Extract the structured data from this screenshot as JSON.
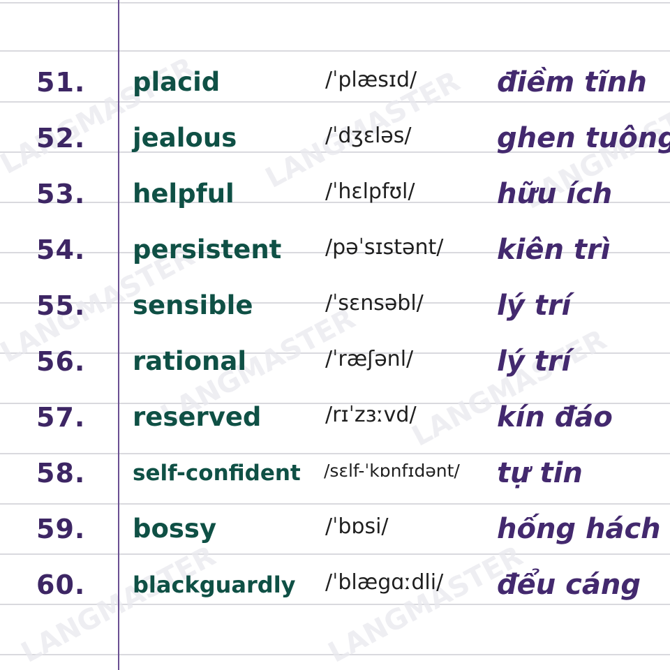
{
  "watermark_text": "LANGMASTER",
  "colors": {
    "number": "#3d2664",
    "word": "#0f5045",
    "ipa": "#1f1f1f",
    "meaning": "#43296e",
    "margin_line": "#6a4f92",
    "rule_line": "#d9d9de"
  },
  "entries": [
    {
      "number": "51.",
      "word": "placid",
      "ipa": "/ˈplæsɪd/",
      "meaning": "điềm tĩnh"
    },
    {
      "number": "52.",
      "word": "jealous",
      "ipa": "/ˈdʒɛləs/",
      "meaning": "ghen tuông"
    },
    {
      "number": "53.",
      "word": "helpful",
      "ipa": "/ˈhɛlpfʊl/",
      "meaning": "hữu ích"
    },
    {
      "number": "54.",
      "word": "persistent",
      "ipa": "/pəˈsɪstənt/",
      "meaning": "kiên trì"
    },
    {
      "number": "55.",
      "word": "sensible",
      "ipa": "/ˈsɛnsəbl/",
      "meaning": "lý trí"
    },
    {
      "number": "56.",
      "word": "rational",
      "ipa": "/ˈræʃənl/",
      "meaning": "lý trí"
    },
    {
      "number": "57.",
      "word": "reserved",
      "ipa": "/rɪˈzɜːvd/",
      "meaning": "kín đáo"
    },
    {
      "number": "58.",
      "word": "self-confident",
      "ipa": "/sɛlf-ˈkɒnfɪdənt/",
      "meaning": "tự tin"
    },
    {
      "number": "59.",
      "word": "bossy",
      "ipa": "/ˈbɒsi/",
      "meaning": "hống hách"
    },
    {
      "number": "60.",
      "word": "blackguardly",
      "ipa": "/ˈblægɑːdli/",
      "meaning": "đểu cáng"
    }
  ]
}
